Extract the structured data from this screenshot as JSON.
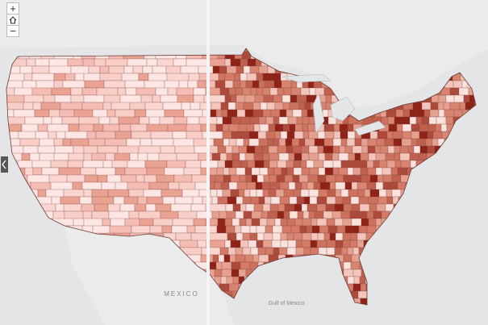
{
  "map": {
    "labels": {
      "country": "MEXICO",
      "gulf": "Gulf of Mexico"
    },
    "controls": {
      "zoom_in": "+",
      "zoom_out": "−"
    }
  }
}
